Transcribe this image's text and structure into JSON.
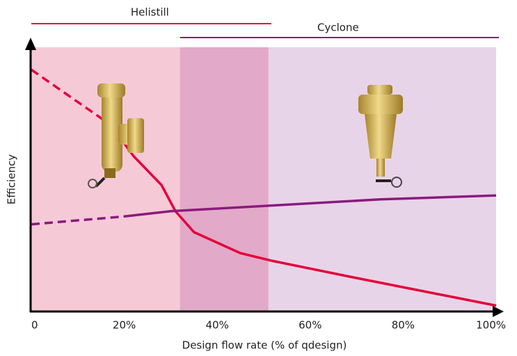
{
  "chart_data": {
    "type": "line",
    "x_label": "Design flow rate (% of qdesign)",
    "y_label": "Efficiency",
    "xlim": [
      0,
      100
    ],
    "ylim": [
      0,
      100
    ],
    "xticks": [
      0,
      {
        "value": 20,
        "label": "20%"
      },
      {
        "value": 40,
        "label": "40%"
      },
      {
        "value": 60,
        "label": "60%"
      },
      {
        "value": 80,
        "label": "80%"
      },
      {
        "value": 100,
        "label": "100%"
      }
    ],
    "ranges": [
      {
        "name": "Helistill",
        "start": 0,
        "end": 51,
        "color": "#e4003a",
        "shade": "#f6c9d7"
      },
      {
        "name": "Cyclone",
        "start": 32,
        "end": 100,
        "color": "#8b1a7e",
        "shade": "#e8d4e8"
      }
    ],
    "overlap_color": "#e2a9c8",
    "series": [
      {
        "name": "Helistill",
        "color": "#e4003a",
        "dash_segments": 1,
        "x": [
          0,
          17,
          22,
          28,
          31,
          35,
          45,
          52,
          70,
          100
        ],
        "values": [
          92,
          71,
          59,
          48,
          38,
          30,
          22,
          19,
          12.5,
          2
        ]
      },
      {
        "name": "Cyclone",
        "color": "#8b1a7e",
        "dash_segments": 1,
        "x": [
          0,
          20,
          30,
          50,
          75,
          100
        ],
        "values": [
          33,
          36,
          38,
          40,
          42.5,
          44
        ]
      }
    ]
  }
}
